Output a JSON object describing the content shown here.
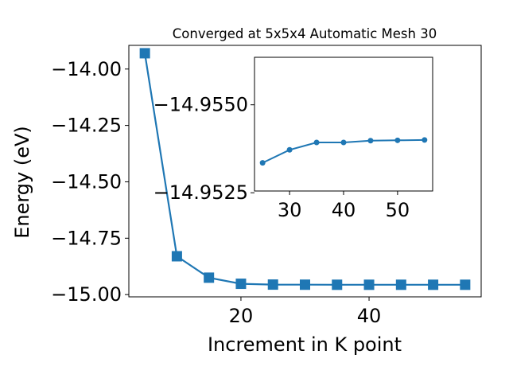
{
  "chart_data": [
    {
      "type": "line",
      "title": "Converged at 5x5x4 Automatic Mesh 30",
      "xlabel": "Increment in K point",
      "ylabel": "Energy (eV)",
      "x": [
        5,
        10,
        15,
        20,
        25,
        30,
        35,
        40,
        45,
        50,
        55
      ],
      "series": [
        {
          "values": [
            -13.93,
            -14.83,
            -14.925,
            -14.952,
            -14.9556,
            -14.9561,
            -14.9564,
            -14.9564,
            -14.9564,
            -14.9564,
            -14.9564
          ]
        }
      ],
      "marker": "square",
      "xticks": [
        20,
        40
      ],
      "xtick_labels": [
        "20",
        "40"
      ],
      "yticks": [
        -14.0,
        -14.25,
        -14.5,
        -14.75,
        -15.0
      ],
      "ytick_labels": [
        "−14.00",
        "−14.25",
        "−14.50",
        "−14.75",
        "−15.00"
      ],
      "xlim": [
        2.5,
        57.5
      ],
      "ylim": [
        -15.01,
        -13.895
      ],
      "color": "#1f77b4",
      "grid": false
    },
    {
      "type": "line",
      "x": [
        25,
        30,
        35,
        40,
        45,
        50,
        55
      ],
      "series": [
        {
          "values": [
            -14.95335,
            -14.95372,
            -14.95393,
            -14.95393,
            -14.95398,
            -14.95399,
            -14.954
          ]
        }
      ],
      "marker": "circle",
      "xticks": [
        30,
        40,
        50
      ],
      "xtick_labels": [
        "30",
        "40",
        "50"
      ],
      "yticks": [
        -14.9525,
        -14.955
      ],
      "ytick_labels": [
        "−14.9525",
        "−14.9550"
      ],
      "xlim": [
        23.5,
        56.5
      ],
      "ylim": [
        -14.95255,
        -14.95635
      ],
      "color": "#1f77b4",
      "grid": false
    }
  ]
}
